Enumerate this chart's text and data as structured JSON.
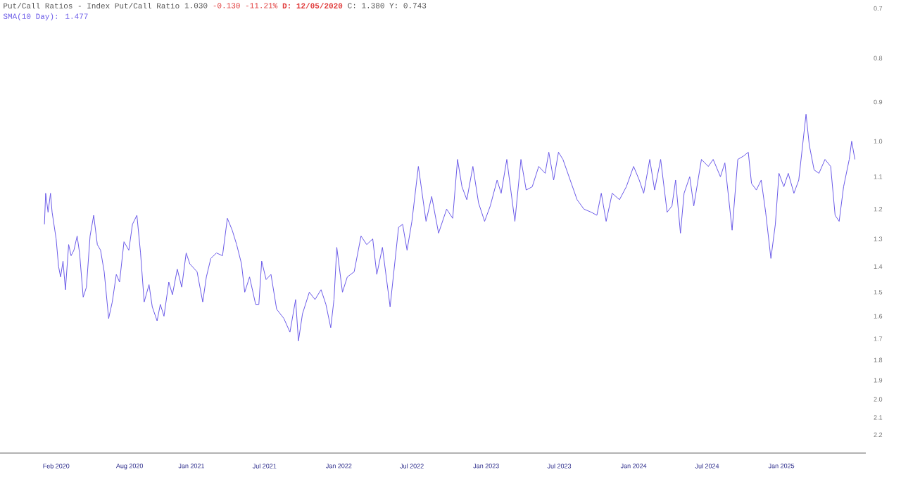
{
  "chart_data": {
    "type": "line",
    "title": "Put/Call Ratios - Index Put/Call Ratio",
    "annotations": [
      "1.030",
      "-0.130 -11.21%",
      "D: 12/05/2020",
      "C: 1.380 Y: 0.743"
    ],
    "legend": "top left",
    "log": "y",
    "xlim": [
      "2019-09-15",
      "2025-07-29"
    ],
    "xticks": [
      {
        "value": "2020-02-01",
        "label": "Feb 2020"
      },
      {
        "value": "2020-08-01",
        "label": "Aug 2020"
      },
      {
        "value": "2021-01-01",
        "label": "Jan 2021"
      },
      {
        "value": "2021-07-01",
        "label": "Jul 2021"
      },
      {
        "value": "2022-01-01",
        "label": "Jan 2022"
      },
      {
        "value": "2022-07-01",
        "label": "Jul 2022"
      },
      {
        "value": "2023-01-01",
        "label": "Jan 2023"
      },
      {
        "value": "2023-07-01",
        "label": "Jul 2023"
      },
      {
        "value": "2024-01-01",
        "label": "Jan 2024"
      },
      {
        "value": "2024-07-01",
        "label": "Jul 2024"
      },
      {
        "value": "2025-01-01",
        "label": "Jan 2025"
      }
    ],
    "ylim": [
      2.2,
      0.7
    ],
    "yticks": [
      0.7,
      0.8,
      0.9,
      {
        "value": 1,
        "label": "1.0"
      },
      1.1,
      1.2,
      1.3,
      1.4,
      1.5,
      1.6,
      1.7,
      1.8,
      1.9,
      {
        "value": 2,
        "label": "2.0"
      },
      2.1,
      2.2
    ],
    "series": [
      {
        "name": "SMA(10 Day): 1.477",
        "color": "#6a5ae8",
        "x": [
          "2020-01-03",
          "2020-01-06",
          "2020-01-12",
          "2020-01-18",
          "2020-01-22",
          "2020-02-01",
          "2020-02-07",
          "2020-02-12",
          "2020-02-18",
          "2020-02-24",
          "2020-03-03",
          "2020-03-09",
          "2020-03-16",
          "2020-03-24",
          "2020-03-30",
          "2020-04-08",
          "2020-04-16",
          "2020-04-25",
          "2020-05-04",
          "2020-05-13",
          "2020-05-21",
          "2020-05-30",
          "2020-06-10",
          "2020-06-19",
          "2020-06-29",
          "2020-07-07",
          "2020-07-18",
          "2020-07-30",
          "2020-08-08",
          "2020-08-19",
          "2020-08-28",
          "2020-09-06",
          "2020-09-18",
          "2020-09-26",
          "2020-10-08",
          "2020-10-16",
          "2020-10-25",
          "2020-11-06",
          "2020-11-15",
          "2020-11-27",
          "2020-12-08",
          "2020-12-19",
          "2020-12-28",
          "2021-01-15",
          "2021-01-29",
          "2021-02-07",
          "2021-02-18",
          "2021-03-04",
          "2021-03-19",
          "2021-03-31",
          "2021-04-12",
          "2021-04-23",
          "2021-05-05",
          "2021-05-13",
          "2021-05-25",
          "2021-06-09",
          "2021-06-17",
          "2021-06-24",
          "2021-07-05",
          "2021-07-17",
          "2021-07-31",
          "2021-08-18",
          "2021-09-02",
          "2021-09-16",
          "2021-09-23",
          "2021-10-03",
          "2021-10-20",
          "2021-11-03",
          "2021-11-18",
          "2021-11-30",
          "2021-12-12",
          "2021-12-20",
          "2021-12-27",
          "2022-01-10",
          "2022-01-22",
          "2022-02-08",
          "2022-02-25",
          "2022-03-11",
          "2022-03-26",
          "2022-04-05",
          "2022-04-19",
          "2022-05-08",
          "2022-05-29",
          "2022-06-08",
          "2022-06-19",
          "2022-07-01",
          "2022-07-17",
          "2022-08-05",
          "2022-08-19",
          "2022-09-05",
          "2022-09-25",
          "2022-10-10",
          "2022-10-22",
          "2022-11-02",
          "2022-11-14",
          "2022-11-29",
          "2022-12-13",
          "2022-12-28",
          "2023-01-11",
          "2023-01-28",
          "2023-02-07",
          "2023-02-21",
          "2023-03-13",
          "2023-03-28",
          "2023-04-10",
          "2023-04-25",
          "2023-05-11",
          "2023-05-27",
          "2023-06-05",
          "2023-06-17",
          "2023-06-29",
          "2023-07-10",
          "2023-07-28",
          "2023-08-14",
          "2023-08-31",
          "2023-09-18",
          "2023-10-02",
          "2023-10-13",
          "2023-10-25",
          "2023-11-09",
          "2023-11-27",
          "2023-12-14",
          "2024-01-01",
          "2024-01-15",
          "2024-01-26",
          "2024-02-10",
          "2024-02-22",
          "2024-03-08",
          "2024-03-24",
          "2024-04-05",
          "2024-04-14",
          "2024-04-26",
          "2024-05-05",
          "2024-05-19",
          "2024-05-29",
          "2024-06-17",
          "2024-07-04",
          "2024-07-16",
          "2024-08-03",
          "2024-08-14",
          "2024-09-01",
          "2024-09-15",
          "2024-09-30",
          "2024-10-11",
          "2024-10-19",
          "2024-10-31",
          "2024-11-12",
          "2024-11-23",
          "2024-12-06",
          "2024-12-17",
          "2024-12-26",
          "2025-01-07",
          "2025-01-18",
          "2025-02-01",
          "2025-02-13",
          "2025-03-03",
          "2025-03-11",
          "2025-03-23",
          "2025-04-04",
          "2025-04-19",
          "2025-05-03",
          "2025-05-14",
          "2025-05-24",
          "2025-06-04",
          "2025-06-18",
          "2025-06-24",
          "2025-07-02"
        ],
        "values": [
          1.25,
          1.15,
          1.21,
          1.15,
          1.21,
          1.3,
          1.4,
          1.44,
          1.38,
          1.49,
          1.32,
          1.36,
          1.34,
          1.29,
          1.35,
          1.52,
          1.48,
          1.29,
          1.22,
          1.32,
          1.34,
          1.42,
          1.61,
          1.54,
          1.43,
          1.46,
          1.31,
          1.34,
          1.25,
          1.22,
          1.35,
          1.54,
          1.47,
          1.56,
          1.62,
          1.55,
          1.6,
          1.46,
          1.51,
          1.41,
          1.48,
          1.35,
          1.39,
          1.42,
          1.54,
          1.44,
          1.37,
          1.35,
          1.36,
          1.23,
          1.27,
          1.32,
          1.39,
          1.5,
          1.44,
          1.55,
          1.55,
          1.38,
          1.45,
          1.43,
          1.57,
          1.61,
          1.67,
          1.53,
          1.71,
          1.59,
          1.5,
          1.53,
          1.49,
          1.55,
          1.65,
          1.53,
          1.33,
          1.5,
          1.44,
          1.42,
          1.29,
          1.32,
          1.3,
          1.43,
          1.33,
          1.56,
          1.26,
          1.25,
          1.34,
          1.24,
          1.07,
          1.24,
          1.16,
          1.28,
          1.2,
          1.23,
          1.05,
          1.13,
          1.17,
          1.07,
          1.18,
          1.24,
          1.19,
          1.11,
          1.15,
          1.05,
          1.24,
          1.05,
          1.14,
          1.13,
          1.07,
          1.09,
          1.03,
          1.11,
          1.03,
          1.05,
          1.11,
          1.17,
          1.2,
          1.21,
          1.22,
          1.15,
          1.24,
          1.15,
          1.17,
          1.13,
          1.07,
          1.11,
          1.15,
          1.05,
          1.14,
          1.05,
          1.21,
          1.19,
          1.11,
          1.28,
          1.15,
          1.1,
          1.19,
          1.05,
          1.07,
          1.05,
          1.1,
          1.06,
          1.27,
          1.05,
          1.04,
          1.03,
          1.12,
          1.14,
          1.11,
          1.21,
          1.37,
          1.25,
          1.09,
          1.13,
          1.09,
          1.15,
          1.11,
          0.93,
          1.01,
          1.08,
          1.09,
          1.05,
          1.07,
          1.22,
          1.24,
          1.13,
          1.05,
          1.0,
          1.05
        ]
      }
    ]
  }
}
